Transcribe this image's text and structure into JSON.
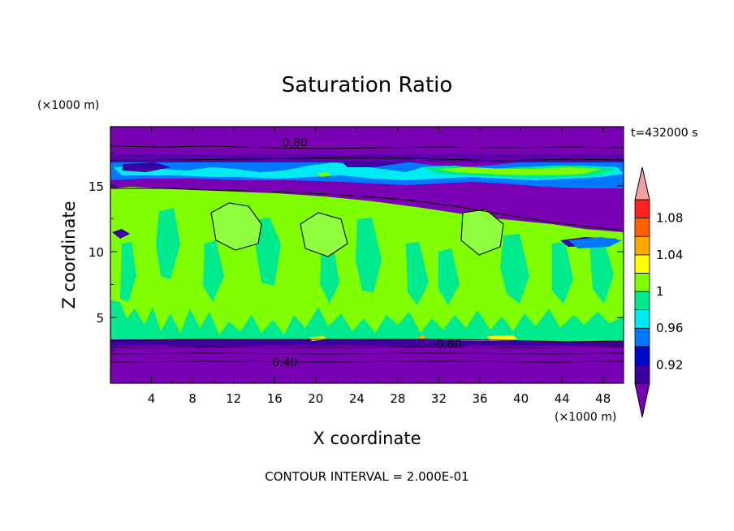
{
  "chart_data": {
    "type": "heatmap",
    "title": "Saturation Ratio",
    "xlabel": "X coordinate",
    "ylabel": "Z coordinate",
    "x_units": "(×1000 m)",
    "y_units": "(×1000 m)",
    "time_label": "t=432000 s",
    "footer": "CONTOUR INTERVAL = 2.000E-01",
    "xlim": [
      0,
      50
    ],
    "ylim": [
      0,
      19.5
    ],
    "x_ticks": [
      "4",
      "8",
      "12",
      "16",
      "20",
      "24",
      "28",
      "32",
      "36",
      "40",
      "44",
      "48"
    ],
    "y_ticks": [
      "5",
      "10",
      "15"
    ],
    "colorbar": {
      "tick_labels": [
        "0.92",
        "0.96",
        "1",
        "1.04",
        "1.08"
      ],
      "levels": [
        0.9,
        0.92,
        0.94,
        0.96,
        0.98,
        1.0,
        1.02,
        1.04,
        1.06,
        1.08,
        1.1
      ],
      "colors": [
        "#7a00b4",
        "#3c00a0",
        "#0008c8",
        "#0078ff",
        "#00ebf2",
        "#00e98c",
        "#80ff00",
        "#ffff00",
        "#ffa800",
        "#ff6000",
        "#ff2020",
        "#f0a0a0"
      ]
    },
    "contour_labels": [
      {
        "text": "0.80",
        "x": 18.0,
        "y": 18.3
      },
      {
        "text": "0.80",
        "x": 33.0,
        "y": 3.0
      },
      {
        "text": "0.40",
        "x": 17.0,
        "y": 1.6
      }
    ],
    "layers": [
      {
        "z_range": [
          0,
          3.2
        ],
        "value": 0.4
      },
      {
        "z_range": [
          3.2,
          5.5
        ],
        "value": 0.99
      },
      {
        "z_range": [
          5.5,
          14.2
        ],
        "value": 1.0
      },
      {
        "z_range": [
          14.2,
          15.6
        ],
        "value": 0.85
      },
      {
        "z_range": [
          15.6,
          17.3
        ],
        "value": 0.96
      },
      {
        "z_range": [
          17.3,
          19.5
        ],
        "value": 0.8
      }
    ]
  }
}
